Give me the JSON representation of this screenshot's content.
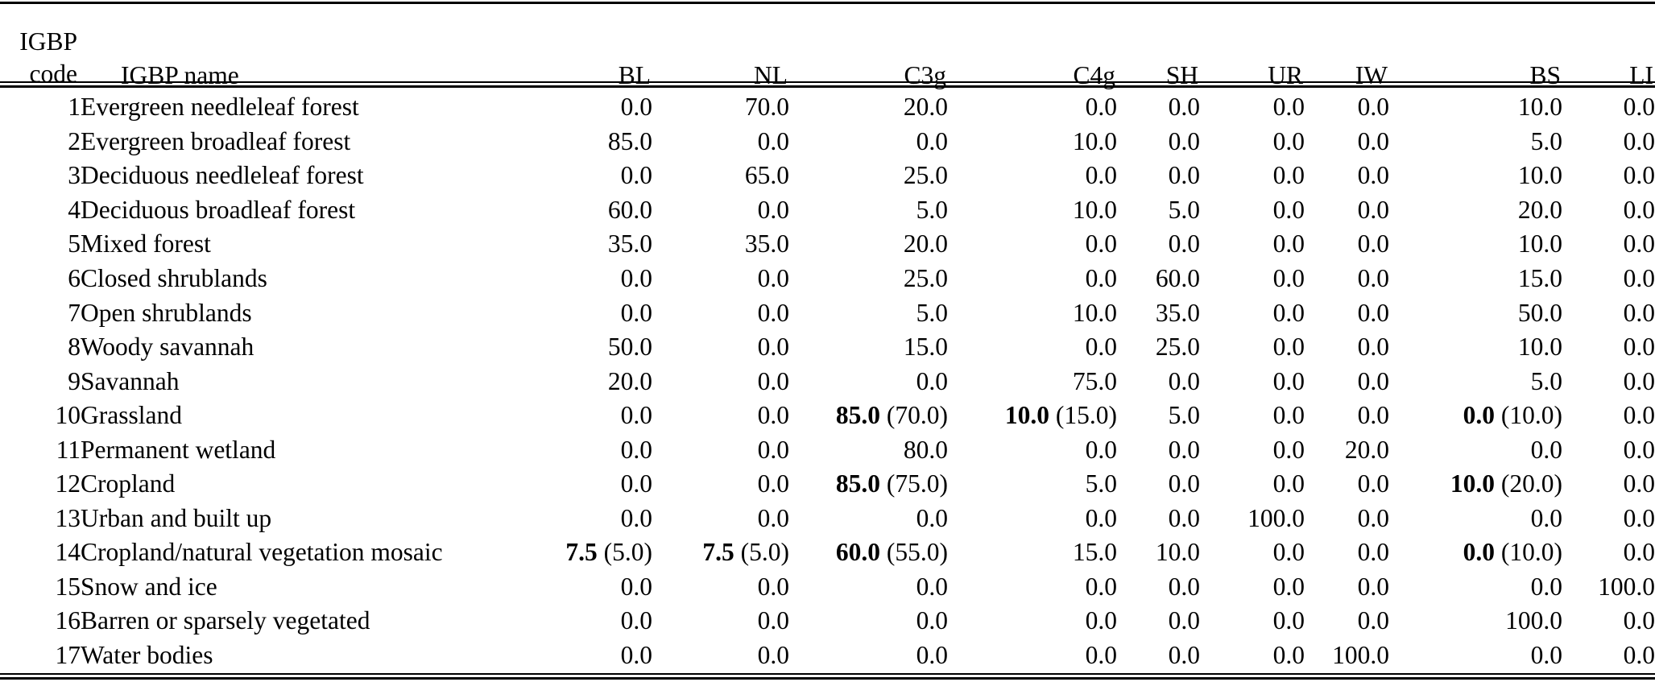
{
  "page": {
    "background": "#ffffff",
    "text_color": "#000000",
    "rule_color": "#000000"
  },
  "table": {
    "header": {
      "code_line1": "IGBP",
      "code_line2": "code",
      "name": "IGBP name"
    },
    "columns": [
      "BL",
      "NL",
      "C3g",
      "C4g",
      "SH",
      "UR",
      "IW",
      "BS",
      "LI"
    ],
    "rows": [
      {
        "code": "1",
        "name": "Evergreen needleleaf forest",
        "values": [
          "0.0",
          "70.0",
          "20.0",
          "0.0",
          "0.0",
          "0.0",
          "0.0",
          "10.0",
          "0.0"
        ]
      },
      {
        "code": "2",
        "name": "Evergreen broadleaf forest",
        "values": [
          "85.0",
          "0.0",
          "0.0",
          "10.0",
          "0.0",
          "0.0",
          "0.0",
          "5.0",
          "0.0"
        ]
      },
      {
        "code": "3",
        "name": "Deciduous needleleaf forest",
        "values": [
          "0.0",
          "65.0",
          "25.0",
          "0.0",
          "0.0",
          "0.0",
          "0.0",
          "10.0",
          "0.0"
        ]
      },
      {
        "code": "4",
        "name": "Deciduous broadleaf forest",
        "values": [
          "60.0",
          "0.0",
          "5.0",
          "10.0",
          "5.0",
          "0.0",
          "0.0",
          "20.0",
          "0.0"
        ]
      },
      {
        "code": "5",
        "name": "Mixed forest",
        "values": [
          "35.0",
          "35.0",
          "20.0",
          "0.0",
          "0.0",
          "0.0",
          "0.0",
          "10.0",
          "0.0"
        ]
      },
      {
        "code": "6",
        "name": "Closed shrublands",
        "values": [
          "0.0",
          "0.0",
          "25.0",
          "0.0",
          "60.0",
          "0.0",
          "0.0",
          "15.0",
          "0.0"
        ]
      },
      {
        "code": "7",
        "name": "Open shrublands",
        "values": [
          "0.0",
          "0.0",
          "5.0",
          "10.0",
          "35.0",
          "0.0",
          "0.0",
          "50.0",
          "0.0"
        ]
      },
      {
        "code": "8",
        "name": "Woody savannah",
        "values": [
          "50.0",
          "0.0",
          "15.0",
          "0.0",
          "25.0",
          "0.0",
          "0.0",
          "10.0",
          "0.0"
        ]
      },
      {
        "code": "9",
        "name": "Savannah",
        "values": [
          "20.0",
          "0.0",
          "0.0",
          "75.0",
          "0.0",
          "0.0",
          "0.0",
          "5.0",
          "0.0"
        ]
      },
      {
        "code": "10",
        "name": "Grassland",
        "values": [
          "0.0",
          "0.0",
          {
            "b": "85.0",
            "p": "(70.0)"
          },
          {
            "b": "10.0",
            "p": "(15.0)"
          },
          "5.0",
          "0.0",
          "0.0",
          {
            "b": "0.0",
            "p": "(10.0)"
          },
          "0.0"
        ]
      },
      {
        "code": "11",
        "name": "Permanent wetland",
        "values": [
          "0.0",
          "0.0",
          "80.0",
          "0.0",
          "0.0",
          "0.0",
          "20.0",
          "0.0",
          "0.0"
        ]
      },
      {
        "code": "12",
        "name": "Cropland",
        "values": [
          "0.0",
          "0.0",
          {
            "b": "85.0",
            "p": "(75.0)"
          },
          "5.0",
          "0.0",
          "0.0",
          "0.0",
          {
            "b": "10.0",
            "p": "(20.0)"
          },
          "0.0"
        ]
      },
      {
        "code": "13",
        "name": "Urban and built up",
        "values": [
          "0.0",
          "0.0",
          "0.0",
          "0.0",
          "0.0",
          "100.0",
          "0.0",
          "0.0",
          "0.0"
        ]
      },
      {
        "code": "14",
        "name": "Cropland/natural vegetation mosaic",
        "values": [
          {
            "b": "7.5",
            "p": "(5.0)"
          },
          {
            "b": "7.5",
            "p": "(5.0)"
          },
          {
            "b": "60.0",
            "p": "(55.0)"
          },
          "15.0",
          "10.0",
          "0.0",
          "0.0",
          {
            "b": "0.0",
            "p": "(10.0)"
          },
          "0.0"
        ]
      },
      {
        "code": "15",
        "name": "Snow and ice",
        "values": [
          "0.0",
          "0.0",
          "0.0",
          "0.0",
          "0.0",
          "0.0",
          "0.0",
          "0.0",
          "100.0"
        ]
      },
      {
        "code": "16",
        "name": "Barren or sparsely vegetated",
        "values": [
          "0.0",
          "0.0",
          "0.0",
          "0.0",
          "0.0",
          "0.0",
          "0.0",
          "100.0",
          "0.0"
        ]
      },
      {
        "code": "17",
        "name": "Water bodies",
        "values": [
          "0.0",
          "0.0",
          "0.0",
          "0.0",
          "0.0",
          "0.0",
          "100.0",
          "0.0",
          "0.0"
        ]
      }
    ]
  }
}
